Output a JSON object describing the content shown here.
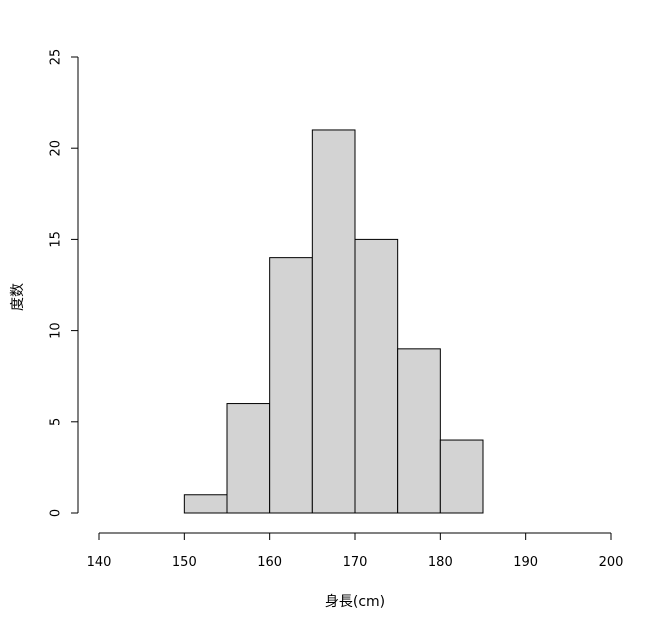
{
  "chart_data": {
    "type": "bar",
    "title": "",
    "xlabel": "身長(cm)",
    "ylabel": "度数",
    "bins": [
      {
        "from": 150,
        "to": 155,
        "count": 1
      },
      {
        "from": 155,
        "to": 160,
        "count": 6
      },
      {
        "from": 160,
        "to": 165,
        "count": 14
      },
      {
        "from": 165,
        "to": 170,
        "count": 21
      },
      {
        "from": 170,
        "to": 175,
        "count": 15
      },
      {
        "from": 175,
        "to": 180,
        "count": 9
      },
      {
        "from": 180,
        "to": 185,
        "count": 4
      }
    ],
    "xlim": [
      140,
      200
    ],
    "ylim": [
      0,
      25
    ],
    "xticks": [
      "140",
      "150",
      "160",
      "170",
      "180",
      "190",
      "200"
    ],
    "yticks": [
      "0",
      "5",
      "10",
      "15",
      "20",
      "25"
    ],
    "bar_color": "#d3d3d3",
    "grid": false,
    "legend": "none"
  }
}
